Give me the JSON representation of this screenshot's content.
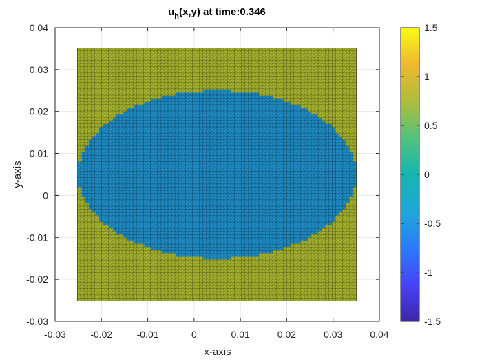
{
  "chart_data": {
    "type": "heatmap",
    "title_main": "u",
    "title_sub": "h",
    "title_rest": "(x,y) at time:0.346",
    "xlabel": "x-axis",
    "ylabel": "y-axis",
    "xlim": [
      -0.03,
      0.04
    ],
    "ylim": [
      -0.03,
      0.04
    ],
    "x_ticks": [
      "-0.03",
      "-0.02",
      "-0.01",
      "0",
      "0.01",
      "0.02",
      "0.03",
      "0.04"
    ],
    "y_ticks": [
      "-0.03",
      "-0.02",
      "-0.01",
      "0",
      "0.01",
      "0.02",
      "0.03",
      "0.04"
    ],
    "grid": true,
    "mesh": {
      "type": "triangular",
      "x_range": [
        -0.025,
        0.035
      ],
      "y_range": [
        -0.025,
        0.035
      ],
      "divisions": 80
    },
    "field": {
      "shape": "ellipse",
      "center": [
        0.005,
        0.005
      ],
      "semi_axis_x": 0.03,
      "semi_axis_y": 0.02,
      "inside_value": -0.3,
      "outside_value": 0.8,
      "inside_color": "#1f8fc9",
      "outside_color": "#a7b52e"
    },
    "colorbar": {
      "limits": [
        -1.5,
        1.5
      ],
      "tick_values": [
        -1.5,
        -1,
        -0.5,
        0,
        0.5,
        1,
        1.5
      ],
      "tick_labels": [
        "-1.5",
        "-1",
        "-0.5",
        "0",
        "0.5",
        "1",
        "1.5"
      ],
      "colors": [
        "#3e26a8",
        "#4743f8",
        "#2b7bf9",
        "#1fa8d6",
        "#14b6b0",
        "#54c27c",
        "#b0bd3a",
        "#eeb92f",
        "#f9fb15"
      ]
    }
  }
}
